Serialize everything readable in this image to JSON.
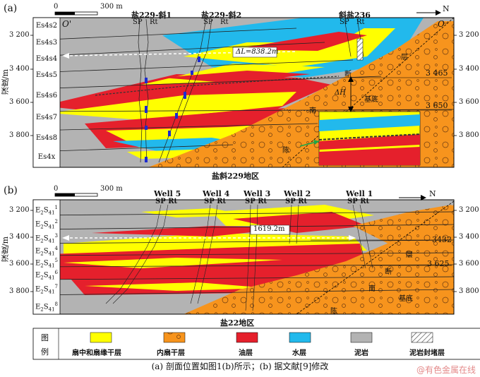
{
  "panel_a": {
    "tag": "(a)",
    "scale_label": "0",
    "scale_label_end": "300 m",
    "north": "N",
    "ylabel": "深度/m",
    "left_end": "O'",
    "right_end": "O",
    "depth_ticks": [
      "3 200",
      "3 400",
      "3 600",
      "3 800"
    ],
    "wells": [
      {
        "name": "盐229-斜1",
        "sp": "SP",
        "rt": "Rt"
      },
      {
        "name": "盐229-斜2",
        "sp": "SP",
        "rt": "Rt"
      },
      {
        "name": "斜盐236",
        "sp": "SP",
        "rt": "Rt"
      }
    ],
    "layers": [
      "Es4s2",
      "Es4s3",
      "Es4s4",
      "Es4s5",
      "Es4s6",
      "Es4s7",
      "Es4s8",
      "Es4x"
    ],
    "distance": "ΔL=838.2m",
    "throw": "ΔH",
    "depth_marks": [
      "3 465",
      "3 650"
    ],
    "fault_words": [
      "断",
      "层",
      "陈",
      "南",
      "基底"
    ],
    "area": "盐斜229地区"
  },
  "panel_b": {
    "tag": "(b)",
    "scale_label": "0",
    "scale_label_end": "300 m",
    "north": "N",
    "ylabel": "深度/m",
    "depth_ticks": [
      "3 200",
      "3 400",
      "3 600",
      "3 800"
    ],
    "wells": [
      {
        "name": "Well 5",
        "sprt": "SP Rt"
      },
      {
        "name": "Well 4",
        "sprt": "SP Rt"
      },
      {
        "name": "Well 3",
        "sprt": "SP Rt"
      },
      {
        "name": "Well 2",
        "sprt": "SP Rt"
      },
      {
        "name": "Well 1",
        "sprt": "SP Rt"
      }
    ],
    "layer_prefix": "E",
    "layer_sub": "2",
    "layer_mid": "S",
    "layer_sub2": "41",
    "layer_sups": [
      "1",
      "2",
      "3",
      "4",
      "5",
      "6",
      "7",
      "8"
    ],
    "distance": "1619.2m",
    "depth_marks": [
      "3432",
      "3 625"
    ],
    "fault_words": [
      "断",
      "层",
      "陈",
      "南",
      "基底"
    ],
    "area": "盐22地区"
  },
  "legend": {
    "title_1": "图",
    "title_2": "例",
    "items": [
      {
        "label": "扇中和扇缘干层",
        "color": "#ffff00"
      },
      {
        "label": "内扇干层",
        "color": "#f7941d"
      },
      {
        "label": "油层",
        "color": "#e5202c"
      },
      {
        "label": "水层",
        "color": "#22b9ec"
      },
      {
        "label": "泥岩",
        "color": "#b3b3b3"
      },
      {
        "label": "泥岩封堵层",
        "color": "#ffffff"
      }
    ]
  },
  "caption": "(a) 剖面位置如图1(b)所示；(b) 据文献[9]修改",
  "watermark": "@有色金属在线",
  "colors": {
    "yellow": "#ffff00",
    "orange": "#f7941d",
    "red": "#e5202c",
    "blue": "#22b9ec",
    "gray": "#b3b3b3"
  }
}
